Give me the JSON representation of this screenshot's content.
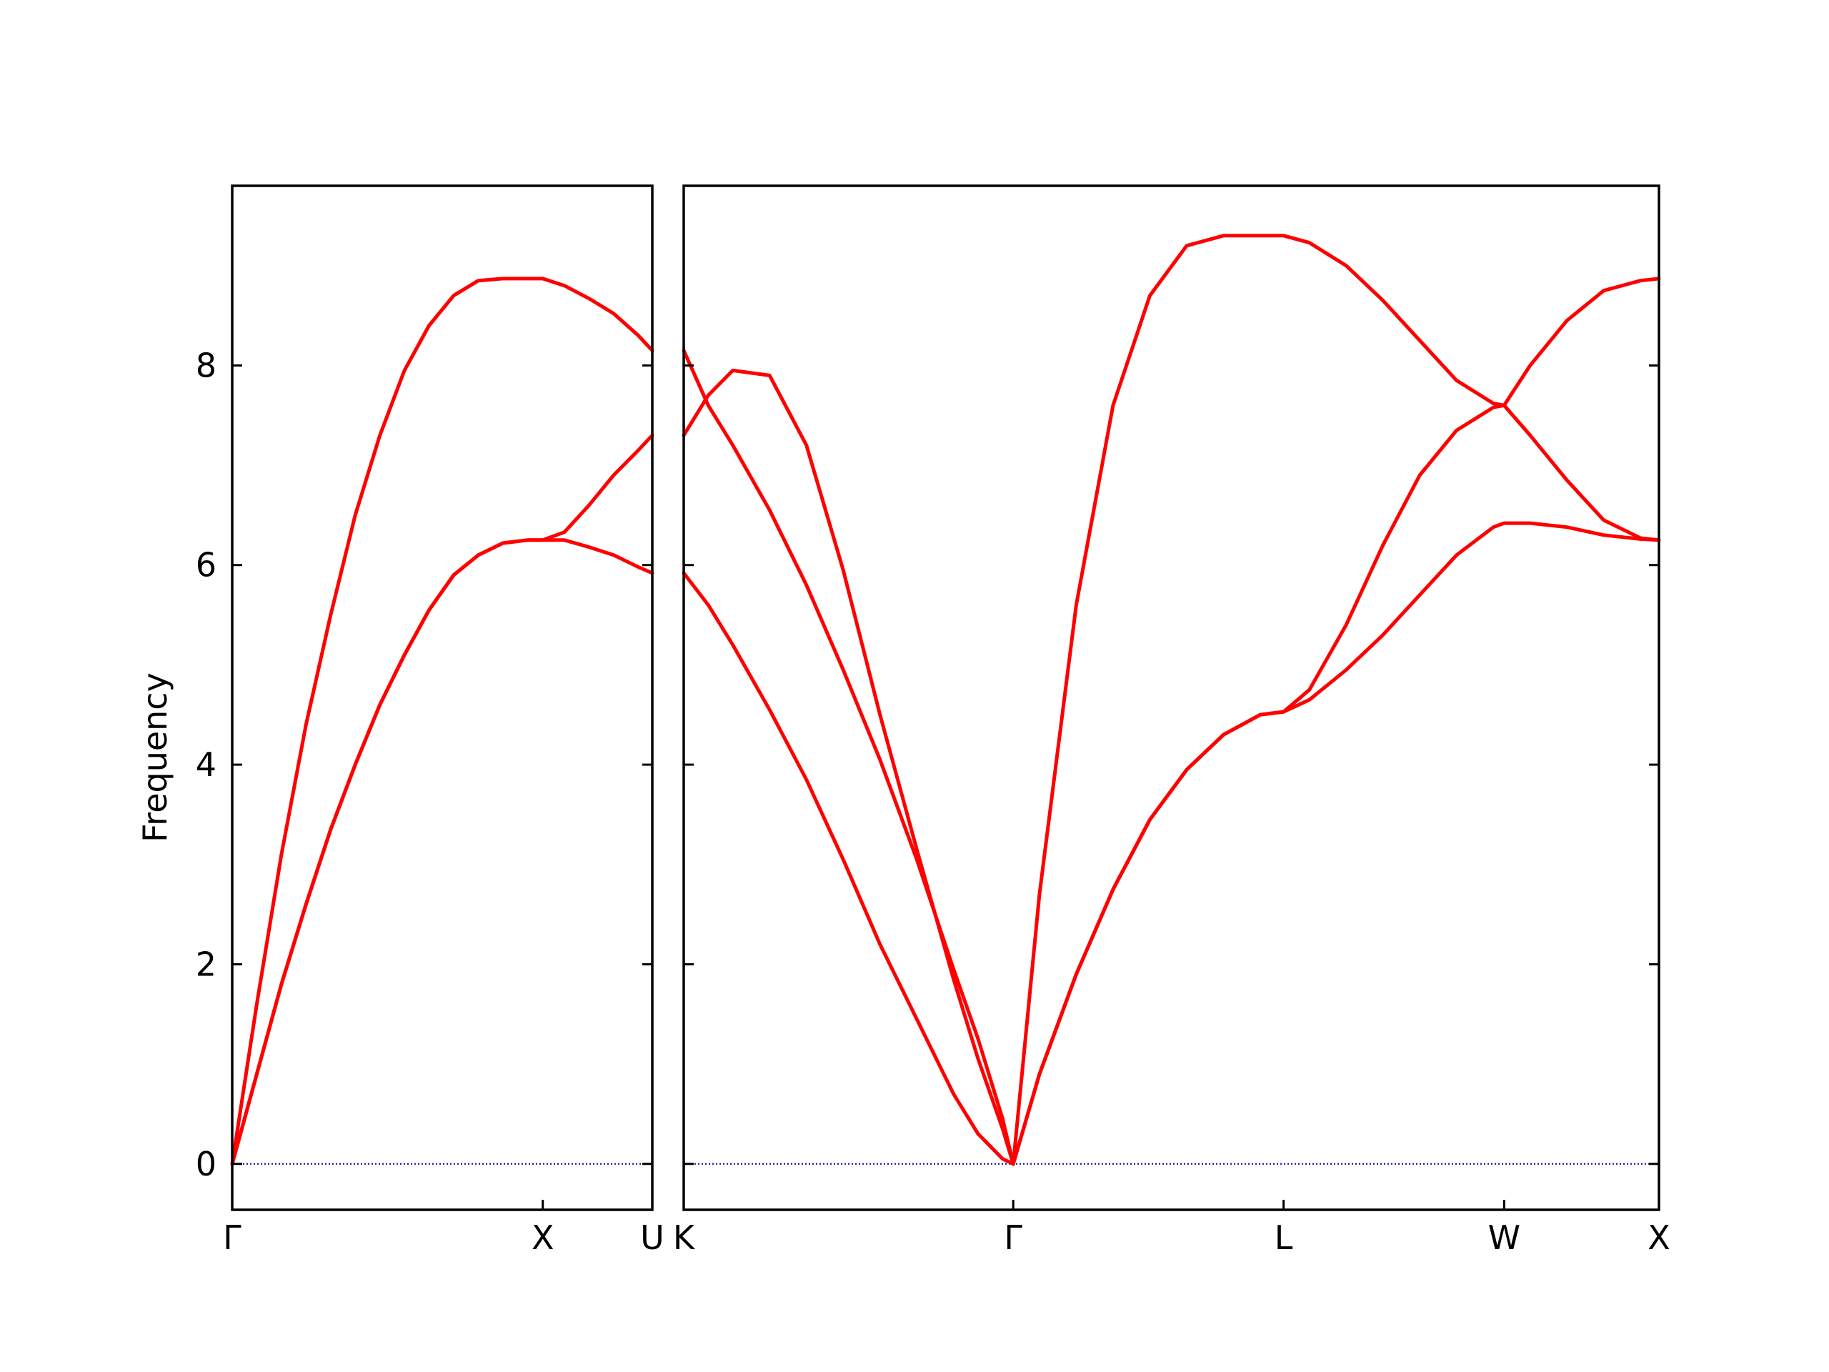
{
  "chart_data": {
    "type": "line",
    "title": "",
    "ylabel": "Frequency",
    "ylim": [
      -0.46,
      9.8
    ],
    "yticks": [
      0,
      2,
      4,
      6,
      8
    ],
    "grid": false,
    "colors": {
      "band": "#ff0000",
      "zero_line": "#0000aa",
      "axes": "#000000"
    },
    "panels": [
      {
        "xlim": [
          0,
          1.707
        ],
        "xticks": [
          {
            "x": 0.0,
            "label": "Γ"
          },
          {
            "x": 1.262,
            "label": "X"
          },
          {
            "x": 1.707,
            "label": "U"
          }
        ],
        "series": [
          {
            "x": [
              0,
              0.1,
              0.2,
              0.3,
              0.4,
              0.5,
              0.6,
              0.7,
              0.8,
              0.9,
              1.0,
              1.1,
              1.2,
              1.262,
              1.35,
              1.45,
              1.55,
              1.65,
              1.707
            ],
            "y": [
              0,
              1.6,
              3.1,
              4.4,
              5.5,
              6.5,
              7.3,
              7.95,
              8.4,
              8.7,
              8.85,
              8.87,
              8.87,
              8.87,
              8.8,
              8.67,
              8.52,
              8.3,
              8.15
            ]
          },
          {
            "x": [
              0,
              0.1,
              0.2,
              0.3,
              0.4,
              0.5,
              0.6,
              0.7,
              0.8,
              0.9,
              1.0,
              1.1,
              1.2,
              1.262,
              1.35,
              1.45,
              1.55,
              1.65,
              1.707
            ],
            "y": [
              0,
              0.9,
              1.8,
              2.6,
              3.35,
              4.0,
              4.6,
              5.1,
              5.55,
              5.9,
              6.1,
              6.22,
              6.25,
              6.25,
              6.33,
              6.6,
              6.9,
              7.15,
              7.3
            ]
          },
          {
            "x": [
              0,
              0.1,
              0.2,
              0.3,
              0.4,
              0.5,
              0.6,
              0.7,
              0.8,
              0.9,
              1.0,
              1.1,
              1.2,
              1.262,
              1.35,
              1.45,
              1.55,
              1.65,
              1.707
            ],
            "y": [
              0,
              0.9,
              1.8,
              2.6,
              3.35,
              4.0,
              4.6,
              5.1,
              5.55,
              5.9,
              6.1,
              6.22,
              6.25,
              6.25,
              6.25,
              6.18,
              6.1,
              5.98,
              5.92
            ]
          }
        ]
      },
      {
        "xlim": [
          0,
          3.975
        ],
        "xticks": [
          {
            "x": 0.0,
            "label": "K"
          },
          {
            "x": 1.343,
            "label": "Γ"
          },
          {
            "x": 2.445,
            "label": "L"
          },
          {
            "x": 3.344,
            "label": "W"
          },
          {
            "x": 3.975,
            "label": "X"
          }
        ],
        "series": [
          {
            "x": [
              0,
              0.1,
              0.2,
              0.35,
              0.5,
              0.65,
              0.8,
              0.95,
              1.1,
              1.2,
              1.3,
              1.343
            ],
            "y": [
              7.3,
              7.7,
              7.95,
              7.9,
              7.2,
              5.95,
              4.5,
              3.15,
              1.85,
              1.05,
              0.35,
              0
            ]
          },
          {
            "x": [
              0,
              0.1,
              0.2,
              0.35,
              0.5,
              0.65,
              0.8,
              0.95,
              1.1,
              1.2,
              1.3,
              1.343
            ],
            "y": [
              8.15,
              7.6,
              7.2,
              6.55,
              5.8,
              4.95,
              4.05,
              3.05,
              1.95,
              1.25,
              0.45,
              0
            ]
          },
          {
            "x": [
              0,
              0.1,
              0.2,
              0.35,
              0.5,
              0.65,
              0.8,
              0.95,
              1.1,
              1.2,
              1.3,
              1.343
            ],
            "y": [
              5.92,
              5.6,
              5.2,
              4.55,
              3.85,
              3.05,
              2.2,
              1.45,
              0.7,
              0.3,
              0.05,
              0
            ]
          },
          {
            "x": [
              1.343,
              1.45,
              1.6,
              1.75,
              1.9,
              2.05,
              2.2,
              2.35,
              2.445,
              2.55,
              2.7,
              2.85,
              3.0,
              3.15,
              3.3,
              3.344,
              3.45,
              3.6,
              3.75,
              3.9,
              3.975
            ],
            "y": [
              0,
              2.7,
              5.6,
              7.6,
              8.7,
              9.2,
              9.3,
              9.3,
              9.3,
              9.23,
              9.0,
              8.65,
              8.25,
              7.85,
              7.62,
              7.6,
              7.3,
              6.85,
              6.45,
              6.27,
              6.25
            ]
          },
          {
            "x": [
              1.343,
              1.45,
              1.6,
              1.75,
              1.9,
              2.05,
              2.2,
              2.35,
              2.445,
              2.55,
              2.7,
              2.85,
              3.0,
              3.15,
              3.3,
              3.344,
              3.45,
              3.6,
              3.75,
              3.9,
              3.975
            ],
            "y": [
              0,
              0.9,
              1.9,
              2.75,
              3.45,
              3.95,
              4.3,
              4.5,
              4.53,
              4.75,
              5.4,
              6.2,
              6.9,
              7.35,
              7.58,
              7.6,
              8.0,
              8.45,
              8.75,
              8.85,
              8.87
            ]
          },
          {
            "x": [
              1.343,
              1.45,
              1.6,
              1.75,
              1.9,
              2.05,
              2.2,
              2.35,
              2.445,
              2.55,
              2.7,
              2.85,
              3.0,
              3.15,
              3.3,
              3.344,
              3.45,
              3.6,
              3.75,
              3.9,
              3.975
            ],
            "y": [
              0,
              0.9,
              1.9,
              2.75,
              3.45,
              3.95,
              4.3,
              4.5,
              4.53,
              4.65,
              4.95,
              5.3,
              5.7,
              6.1,
              6.38,
              6.42,
              6.42,
              6.38,
              6.3,
              6.26,
              6.25
            ]
          }
        ]
      }
    ]
  }
}
